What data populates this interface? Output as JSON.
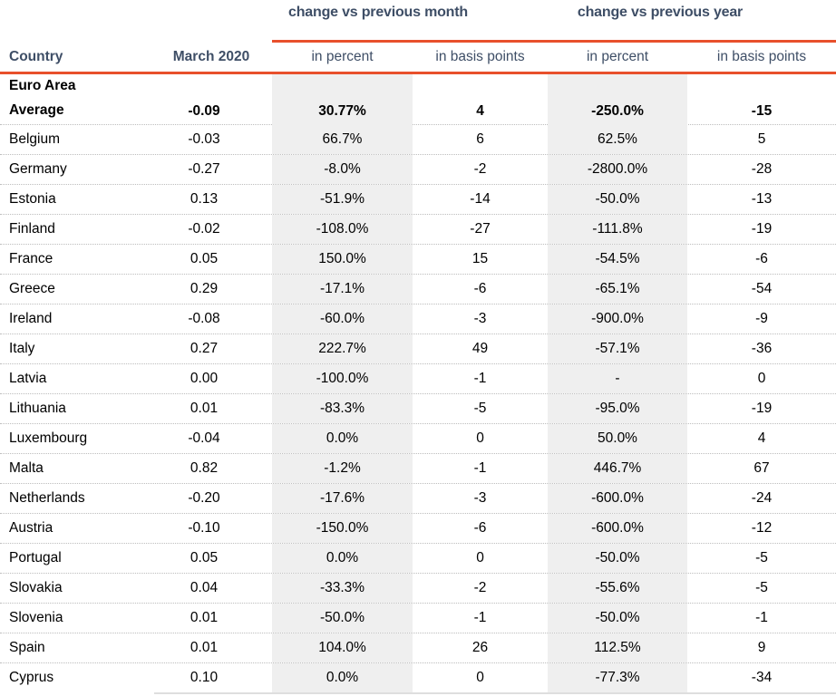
{
  "colors": {
    "accent_rule": "#e8502c",
    "header_text": "#3e4e66",
    "shaded_column_bg": "#efefef",
    "body_text": "#000000"
  },
  "chart_data": {
    "type": "table",
    "group_headers": [
      "change vs previous month",
      "change vs previous year"
    ],
    "columns": [
      "Country",
      "March 2020",
      "in percent",
      "in basis points",
      "in percent",
      "in basis points"
    ],
    "bold_row_index": 0,
    "shaded_column_indexes": [
      2,
      4
    ],
    "rows": [
      [
        "Euro Area\nAverage",
        "-0.09",
        "30.77%",
        "4",
        "-250.0%",
        "-15"
      ],
      [
        "Belgium",
        "-0.03",
        "66.7%",
        "6",
        "62.5%",
        "5"
      ],
      [
        "Germany",
        "-0.27",
        "-8.0%",
        "-2",
        "-2800.0%",
        "-28"
      ],
      [
        "Estonia",
        "0.13",
        "-51.9%",
        "-14",
        "-50.0%",
        "-13"
      ],
      [
        "Finland",
        "-0.02",
        "-108.0%",
        "-27",
        "-111.8%",
        "-19"
      ],
      [
        "France",
        "0.05",
        "150.0%",
        "15",
        "-54.5%",
        "-6"
      ],
      [
        "Greece",
        "0.29",
        "-17.1%",
        "-6",
        "-65.1%",
        "-54"
      ],
      [
        "Ireland",
        "-0.08",
        "-60.0%",
        "-3",
        "-900.0%",
        "-9"
      ],
      [
        "Italy",
        "0.27",
        "222.7%",
        "49",
        "-57.1%",
        "-36"
      ],
      [
        "Latvia",
        "0.00",
        "-100.0%",
        "-1",
        "-",
        "0"
      ],
      [
        "Lithuania",
        "0.01",
        "-83.3%",
        "-5",
        "-95.0%",
        "-19"
      ],
      [
        "Luxembourg",
        "-0.04",
        "0.0%",
        "0",
        "50.0%",
        "4"
      ],
      [
        "Malta",
        "0.82",
        "-1.2%",
        "-1",
        "446.7%",
        "67"
      ],
      [
        "Netherlands",
        "-0.20",
        "-17.6%",
        "-3",
        "-600.0%",
        "-24"
      ],
      [
        "Austria",
        "-0.10",
        "-150.0%",
        "-6",
        "-600.0%",
        "-12"
      ],
      [
        "Portugal",
        "0.05",
        "0.0%",
        "0",
        "-50.0%",
        "-5"
      ],
      [
        "Slovakia",
        "0.04",
        "-33.3%",
        "-2",
        "-55.6%",
        "-5"
      ],
      [
        "Slovenia",
        "0.01",
        "-50.0%",
        "-1",
        "-50.0%",
        "-1"
      ],
      [
        "Spain",
        "0.01",
        "104.0%",
        "26",
        "112.5%",
        "9"
      ],
      [
        "Cyprus",
        "0.10",
        "0.0%",
        "0",
        "-77.3%",
        "-34"
      ]
    ]
  }
}
